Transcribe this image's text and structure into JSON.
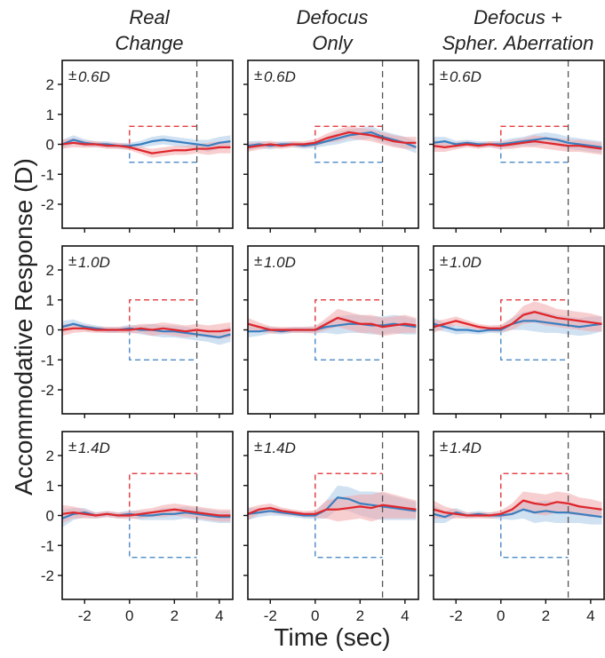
{
  "figure": {
    "ylabel": "Accommodative Response (D)",
    "xlabel": "Time (sec)",
    "columns": [
      {
        "title_lines": [
          "Real",
          "Change"
        ]
      },
      {
        "title_lines": [
          "Defocus",
          "Only"
        ]
      },
      {
        "title_lines": [
          "Defocus +",
          "Spher. Aberration"
        ]
      }
    ],
    "rows": [
      {
        "annotation": "0.6D",
        "prefix": "±",
        "step": 0.6
      },
      {
        "annotation": "1.0D",
        "prefix": "±",
        "step": 1.0
      },
      {
        "annotation": "1.4D",
        "prefix": "±",
        "step": 1.4
      }
    ],
    "colors": {
      "blue": "#3a7fc0",
      "red": "#e0262b",
      "blue_band": "#a9c9e8",
      "red_band": "#f2a8aa",
      "marker": "#555555"
    }
  },
  "chart_data": {
    "type": "line",
    "xlim": [
      -3,
      4.6
    ],
    "ylim": [
      -2.8,
      2.8
    ],
    "xticks": [
      -2,
      0,
      2,
      4
    ],
    "yticks": [
      -2,
      -1,
      0,
      1,
      2
    ],
    "tick_labels_x": [
      "-2",
      "0",
      "2",
      "4"
    ],
    "tick_labels_y": [
      "-2",
      "-1",
      "0",
      "1",
      "2"
    ],
    "step_window": [
      0,
      3
    ],
    "end_marker_x": 3,
    "x": [
      -3,
      -2.5,
      -2,
      -1.5,
      -1,
      -0.5,
      0,
      0.5,
      1,
      1.5,
      2,
      2.5,
      3,
      3.5,
      4,
      4.5
    ],
    "panels": [
      {
        "row": 0,
        "col": 0,
        "blue": [
          0.0,
          0.15,
          0.05,
          0.0,
          0.0,
          -0.05,
          -0.05,
          0.0,
          0.1,
          0.15,
          0.1,
          0.05,
          0.0,
          -0.05,
          0.05,
          0.1
        ],
        "red": [
          0.0,
          0.05,
          0.0,
          0.0,
          -0.05,
          -0.05,
          -0.1,
          -0.2,
          -0.3,
          -0.25,
          -0.2,
          -0.2,
          -0.15,
          -0.15,
          -0.1,
          -0.1
        ],
        "band": [
          0.15,
          0.15,
          0.12,
          0.1,
          0.1,
          0.1,
          0.1,
          0.12,
          0.15,
          0.15,
          0.15,
          0.15,
          0.15,
          0.2,
          0.2,
          0.2
        ]
      },
      {
        "row": 0,
        "col": 1,
        "blue": [
          -0.05,
          0.0,
          -0.05,
          0.0,
          0.0,
          -0.05,
          0.0,
          0.1,
          0.2,
          0.3,
          0.35,
          0.4,
          0.25,
          0.15,
          0.05,
          -0.1
        ],
        "red": [
          -0.1,
          -0.05,
          0.0,
          -0.05,
          0.0,
          0.0,
          0.05,
          0.2,
          0.3,
          0.4,
          0.35,
          0.3,
          0.2,
          0.1,
          0.05,
          0.05
        ],
        "band": [
          0.15,
          0.12,
          0.12,
          0.1,
          0.1,
          0.1,
          0.12,
          0.15,
          0.2,
          0.2,
          0.2,
          0.2,
          0.2,
          0.2,
          0.2,
          0.2
        ]
      },
      {
        "row": 0,
        "col": 2,
        "blue": [
          0.05,
          0.1,
          0.0,
          0.05,
          0.0,
          0.0,
          0.0,
          0.05,
          0.1,
          0.15,
          0.2,
          0.15,
          0.05,
          0.0,
          -0.05,
          -0.1
        ],
        "red": [
          -0.05,
          -0.1,
          -0.05,
          0.0,
          -0.05,
          0.0,
          -0.05,
          0.0,
          0.05,
          0.1,
          0.05,
          0.0,
          -0.05,
          -0.05,
          -0.1,
          -0.15
        ],
        "band": [
          0.2,
          0.15,
          0.12,
          0.1,
          0.1,
          0.1,
          0.12,
          0.15,
          0.15,
          0.2,
          0.2,
          0.2,
          0.2,
          0.2,
          0.2,
          0.2
        ]
      },
      {
        "row": 1,
        "col": 0,
        "blue": [
          0.1,
          0.2,
          0.1,
          0.05,
          0.0,
          0.0,
          0.05,
          0.0,
          0.0,
          -0.05,
          -0.05,
          -0.1,
          -0.15,
          -0.2,
          -0.25,
          -0.15
        ],
        "red": [
          0.0,
          0.05,
          0.05,
          0.0,
          0.0,
          0.0,
          0.0,
          0.05,
          0.0,
          0.05,
          0.0,
          -0.05,
          0.0,
          -0.05,
          -0.05,
          0.0
        ],
        "band": [
          0.2,
          0.15,
          0.12,
          0.1,
          0.1,
          0.1,
          0.12,
          0.15,
          0.2,
          0.2,
          0.2,
          0.2,
          0.2,
          0.2,
          0.25,
          0.25
        ]
      },
      {
        "row": 1,
        "col": 1,
        "blue": [
          -0.05,
          -0.05,
          0.0,
          -0.05,
          0.0,
          0.0,
          0.0,
          0.1,
          0.15,
          0.2,
          0.2,
          0.15,
          0.15,
          0.2,
          0.15,
          0.1
        ],
        "red": [
          0.2,
          0.1,
          0.0,
          0.0,
          0.0,
          0.0,
          0.0,
          0.2,
          0.4,
          0.3,
          0.2,
          0.2,
          0.1,
          0.15,
          0.2,
          0.15
        ],
        "band": [
          0.2,
          0.15,
          0.12,
          0.1,
          0.1,
          0.1,
          0.12,
          0.2,
          0.3,
          0.3,
          0.3,
          0.3,
          0.3,
          0.3,
          0.3,
          0.25
        ]
      },
      {
        "row": 1,
        "col": 2,
        "blue": [
          0.2,
          0.1,
          0.0,
          0.0,
          -0.05,
          0.0,
          0.0,
          0.2,
          0.3,
          0.3,
          0.25,
          0.2,
          0.15,
          0.1,
          0.15,
          0.2
        ],
        "red": [
          0.1,
          0.2,
          0.3,
          0.2,
          0.1,
          0.05,
          0.05,
          0.2,
          0.5,
          0.6,
          0.5,
          0.4,
          0.35,
          0.3,
          0.25,
          0.2
        ],
        "band": [
          0.2,
          0.15,
          0.15,
          0.12,
          0.1,
          0.1,
          0.12,
          0.2,
          0.3,
          0.35,
          0.35,
          0.3,
          0.3,
          0.3,
          0.3,
          0.25
        ]
      },
      {
        "row": 2,
        "col": 0,
        "blue": [
          -0.1,
          0.05,
          0.1,
          0.0,
          0.05,
          0.0,
          0.05,
          0.0,
          0.0,
          0.05,
          0.05,
          0.1,
          0.05,
          0.0,
          -0.05,
          -0.05
        ],
        "red": [
          0.05,
          0.1,
          0.05,
          0.0,
          0.05,
          0.0,
          0.0,
          0.05,
          0.1,
          0.15,
          0.2,
          0.15,
          0.1,
          0.05,
          0.0,
          0.0
        ],
        "band": [
          0.3,
          0.2,
          0.15,
          0.1,
          0.1,
          0.1,
          0.12,
          0.15,
          0.15,
          0.2,
          0.2,
          0.2,
          0.2,
          0.2,
          0.2,
          0.2
        ]
      },
      {
        "row": 2,
        "col": 1,
        "blue": [
          0.05,
          0.1,
          0.15,
          0.1,
          0.05,
          0.0,
          0.0,
          0.2,
          0.6,
          0.55,
          0.4,
          0.35,
          0.3,
          0.25,
          0.2,
          0.15
        ],
        "red": [
          0.05,
          0.2,
          0.25,
          0.15,
          0.1,
          0.05,
          0.05,
          0.2,
          0.2,
          0.25,
          0.3,
          0.25,
          0.35,
          0.3,
          0.25,
          0.2
        ],
        "band": [
          0.2,
          0.15,
          0.15,
          0.12,
          0.1,
          0.1,
          0.12,
          0.3,
          0.4,
          0.4,
          0.4,
          0.45,
          0.45,
          0.4,
          0.35,
          0.3
        ]
      },
      {
        "row": 2,
        "col": 2,
        "blue": [
          0.05,
          -0.05,
          0.1,
          0.0,
          0.05,
          0.0,
          0.0,
          0.05,
          0.2,
          0.1,
          0.15,
          0.1,
          0.1,
          0.05,
          0.0,
          -0.05
        ],
        "red": [
          0.2,
          0.1,
          0.05,
          0.0,
          0.0,
          0.0,
          0.05,
          0.2,
          0.5,
          0.4,
          0.35,
          0.45,
          0.4,
          0.3,
          0.25,
          0.2
        ],
        "band": [
          0.3,
          0.2,
          0.15,
          0.1,
          0.1,
          0.1,
          0.12,
          0.2,
          0.3,
          0.35,
          0.35,
          0.35,
          0.35,
          0.3,
          0.3,
          0.25
        ]
      }
    ]
  }
}
